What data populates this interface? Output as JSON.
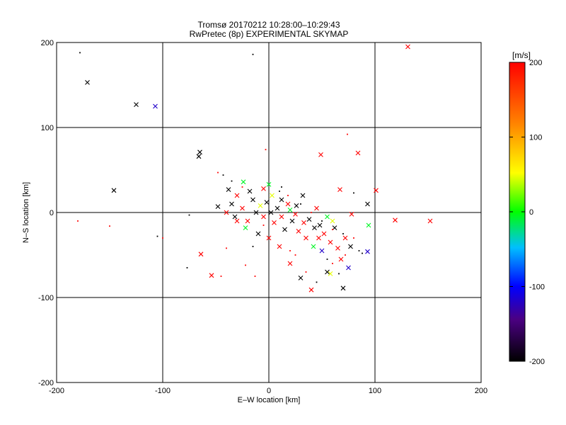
{
  "chart_data": [
    {
      "type": "scatter",
      "title": "Tromsø 20170212 10:28:00–10:29:43",
      "subtitle": "RwPretec (8p) EXPERIMENTAL SKYMAP",
      "xlabel": "E–W location [km]",
      "ylabel": "N–S location [km]",
      "xlim": [
        -200,
        200
      ],
      "ylim": [
        -200,
        200
      ],
      "x_ticks": [
        -200,
        -100,
        0,
        100,
        200
      ],
      "y_ticks": [
        -200,
        -100,
        0,
        100,
        200
      ],
      "grid": true,
      "color_scale": {
        "label": "[m/s]",
        "min": -200,
        "max": 200,
        "ticks": [
          200,
          100,
          0,
          -100,
          -200
        ],
        "colors": [
          "#000000",
          "#4b0082",
          "#0000ff",
          "#00bfff",
          "#00ff00",
          "#ffff00",
          "#ff8000",
          "#ff0000"
        ]
      },
      "series": [
        {
          "marker": "x",
          "points": [
            {
              "x": -171,
              "y": 153,
              "v": -200
            },
            {
              "x": -125,
              "y": 127,
              "v": -200
            },
            {
              "x": -107,
              "y": 125,
              "v": -110
            },
            {
              "x": 131,
              "y": 195,
              "v": 200
            },
            {
              "x": -146,
              "y": 26,
              "v": -200
            },
            {
              "x": -65,
              "y": 71,
              "v": -200
            },
            {
              "x": -66,
              "y": 66,
              "v": -200
            },
            {
              "x": 49,
              "y": 68,
              "v": 200
            },
            {
              "x": 84,
              "y": 70,
              "v": 200
            },
            {
              "x": 67,
              "y": 27,
              "v": 200
            },
            {
              "x": 101,
              "y": 26,
              "v": 200
            },
            {
              "x": -24,
              "y": 36,
              "v": 20
            },
            {
              "x": -38,
              "y": 27,
              "v": -200
            },
            {
              "x": 0,
              "y": 33,
              "v": 20
            },
            {
              "x": 93,
              "y": 10,
              "v": -200
            },
            {
              "x": 119,
              "y": -9,
              "v": 200
            },
            {
              "x": 152,
              "y": -10,
              "v": 200
            },
            {
              "x": 94,
              "y": -15,
              "v": 20
            },
            {
              "x": 93,
              "y": -46,
              "v": -110
            },
            {
              "x": -64,
              "y": -49,
              "v": 200
            },
            {
              "x": -54,
              "y": -74,
              "v": 200
            },
            {
              "x": -48,
              "y": 7,
              "v": -200
            },
            {
              "x": -35,
              "y": 10,
              "v": -200
            },
            {
              "x": -30,
              "y": 20,
              "v": 200
            },
            {
              "x": -25,
              "y": 5,
              "v": 200
            },
            {
              "x": -20,
              "y": -10,
              "v": 200
            },
            {
              "x": -15,
              "y": 15,
              "v": -200
            },
            {
              "x": -12,
              "y": 0,
              "v": -200
            },
            {
              "x": -8,
              "y": 8,
              "v": 80
            },
            {
              "x": -5,
              "y": -5,
              "v": 200
            },
            {
              "x": -2,
              "y": 12,
              "v": -200
            },
            {
              "x": 2,
              "y": 0,
              "v": -200
            },
            {
              "x": 5,
              "y": -12,
              "v": 200
            },
            {
              "x": 8,
              "y": 5,
              "v": -200
            },
            {
              "x": 12,
              "y": -5,
              "v": 200
            },
            {
              "x": 15,
              "y": -20,
              "v": -200
            },
            {
              "x": 18,
              "y": 10,
              "v": 200
            },
            {
              "x": 22,
              "y": -10,
              "v": -200
            },
            {
              "x": 25,
              "y": -2,
              "v": 200
            },
            {
              "x": 28,
              "y": -22,
              "v": 200
            },
            {
              "x": 32,
              "y": 20,
              "v": -200
            },
            {
              "x": 35,
              "y": -30,
              "v": 200
            },
            {
              "x": 38,
              "y": -8,
              "v": -200
            },
            {
              "x": 42,
              "y": -40,
              "v": 20
            },
            {
              "x": 45,
              "y": 5,
              "v": 200
            },
            {
              "x": 48,
              "y": -15,
              "v": -200
            },
            {
              "x": 52,
              "y": -25,
              "v": 200
            },
            {
              "x": 55,
              "y": -5,
              "v": 20
            },
            {
              "x": 58,
              "y": -35,
              "v": 200
            },
            {
              "x": 62,
              "y": -18,
              "v": -200
            },
            {
              "x": 65,
              "y": -42,
              "v": 200
            },
            {
              "x": 68,
              "y": -55,
              "v": 200
            },
            {
              "x": 75,
              "y": -65,
              "v": -110
            },
            {
              "x": 70,
              "y": -89,
              "v": -200
            },
            {
              "x": 40,
              "y": -91,
              "v": 200
            },
            {
              "x": 30,
              "y": -77,
              "v": -200
            },
            {
              "x": 55,
              "y": -70,
              "v": -200
            },
            {
              "x": 58,
              "y": -72,
              "v": 80
            },
            {
              "x": 20,
              "y": -60,
              "v": 200
            },
            {
              "x": 10,
              "y": -40,
              "v": 200
            },
            {
              "x": 0,
              "y": -30,
              "v": 200
            },
            {
              "x": -10,
              "y": -25,
              "v": -200
            },
            {
              "x": -30,
              "y": -10,
              "v": 200
            },
            {
              "x": -40,
              "y": 0,
              "v": 200
            },
            {
              "x": -32,
              "y": -5,
              "v": -200
            },
            {
              "x": -22,
              "y": -18,
              "v": 20
            },
            {
              "x": 3,
              "y": 20,
              "v": 80
            },
            {
              "x": 12,
              "y": 15,
              "v": -200
            },
            {
              "x": 20,
              "y": 3,
              "v": 20
            },
            {
              "x": 26,
              "y": 8,
              "v": -200
            },
            {
              "x": 33,
              "y": -12,
              "v": 200
            },
            {
              "x": 43,
              "y": -18,
              "v": -200
            },
            {
              "x": 47,
              "y": -30,
              "v": 200
            },
            {
              "x": 50,
              "y": -45,
              "v": -110
            },
            {
              "x": 60,
              "y": -10,
              "v": 80
            },
            {
              "x": 72,
              "y": -30,
              "v": 200
            },
            {
              "x": 77,
              "y": -40,
              "v": -200
            },
            {
              "x": 78,
              "y": -2,
              "v": 200
            },
            {
              "x": -18,
              "y": 25,
              "v": -200
            },
            {
              "x": -5,
              "y": 28,
              "v": 200
            }
          ]
        },
        {
          "marker": "dot",
          "points": [
            {
              "x": -178,
              "y": 188,
              "v": -200
            },
            {
              "x": -15,
              "y": 186,
              "v": -200
            },
            {
              "x": -180,
              "y": -10,
              "v": 200
            },
            {
              "x": -150,
              "y": -16,
              "v": 200
            },
            {
              "x": -105,
              "y": -28,
              "v": -200
            },
            {
              "x": -100,
              "y": -30,
              "v": 200
            },
            {
              "x": -75,
              "y": -3,
              "v": -200
            },
            {
              "x": -77,
              "y": -65,
              "v": -200
            },
            {
              "x": -45,
              "y": -75,
              "v": 200
            },
            {
              "x": -48,
              "y": 47,
              "v": 200
            },
            {
              "x": -43,
              "y": 44,
              "v": -200
            },
            {
              "x": -35,
              "y": 37,
              "v": -200
            },
            {
              "x": -3,
              "y": 74,
              "v": 200
            },
            {
              "x": 74,
              "y": 92,
              "v": 200
            },
            {
              "x": 80,
              "y": 23,
              "v": -200
            },
            {
              "x": -40,
              "y": -42,
              "v": 200
            },
            {
              "x": -22,
              "y": -62,
              "v": 200
            },
            {
              "x": -13,
              "y": -75,
              "v": 200
            },
            {
              "x": 10,
              "y": 25,
              "v": -200
            },
            {
              "x": 18,
              "y": 20,
              "v": 200
            },
            {
              "x": 30,
              "y": 10,
              "v": -200
            },
            {
              "x": 40,
              "y": 0,
              "v": 200
            },
            {
              "x": 50,
              "y": -10,
              "v": -200
            },
            {
              "x": 60,
              "y": -20,
              "v": 200
            },
            {
              "x": 70,
              "y": -25,
              "v": -200
            },
            {
              "x": 80,
              "y": -30,
              "v": 200
            },
            {
              "x": 85,
              "y": -45,
              "v": -200
            },
            {
              "x": 88,
              "y": -48,
              "v": -200
            },
            {
              "x": 35,
              "y": -70,
              "v": 200
            },
            {
              "x": 45,
              "y": -82,
              "v": -200
            },
            {
              "x": 60,
              "y": -60,
              "v": 200
            },
            {
              "x": 66,
              "y": -72,
              "v": -200
            },
            {
              "x": 20,
              "y": -45,
              "v": 200
            },
            {
              "x": -5,
              "y": -15,
              "v": 200
            },
            {
              "x": -15,
              "y": -40,
              "v": -200
            },
            {
              "x": 25,
              "y": -50,
              "v": 200
            },
            {
              "x": 55,
              "y": -55,
              "v": -200
            },
            {
              "x": 72,
              "y": -50,
              "v": 200
            },
            {
              "x": 12,
              "y": 30,
              "v": -200
            },
            {
              "x": -25,
              "y": 30,
              "v": 200
            }
          ]
        }
      ]
    }
  ]
}
